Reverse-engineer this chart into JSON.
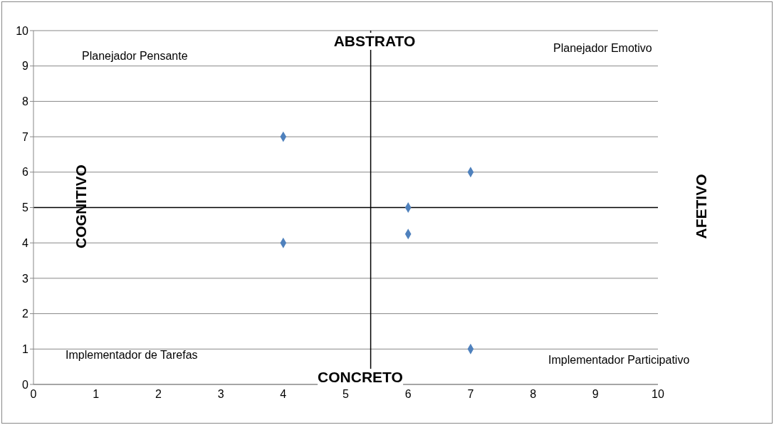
{
  "chart_data": {
    "type": "scatter",
    "x": [
      4,
      7,
      6,
      6,
      4,
      7
    ],
    "values": [
      7,
      6,
      5,
      4.25,
      4,
      1
    ],
    "color": "#4f81bd",
    "marker": "diamond",
    "xlim": [
      0,
      10
    ],
    "xticks": [
      0,
      1,
      2,
      3,
      4,
      5,
      6,
      7,
      8,
      9,
      10
    ],
    "ylim": [
      0,
      10
    ],
    "yticks": [
      0,
      1,
      2,
      3,
      4,
      5,
      6,
      7,
      8,
      9,
      10
    ],
    "grid": "y",
    "ref_lines": [
      {
        "axis": "x",
        "value": 5.4,
        "color": "#000000"
      },
      {
        "axis": "y",
        "value": 5,
        "color": "#000000"
      }
    ],
    "annotations": [
      "Planejador Pensante",
      "ABSTRATO",
      "Planejador Emotivo",
      "COGNITIVO",
      "AFETIVO",
      "Implementador de Tarefas",
      "CONCRETO",
      "Implementador Participativo"
    ]
  }
}
